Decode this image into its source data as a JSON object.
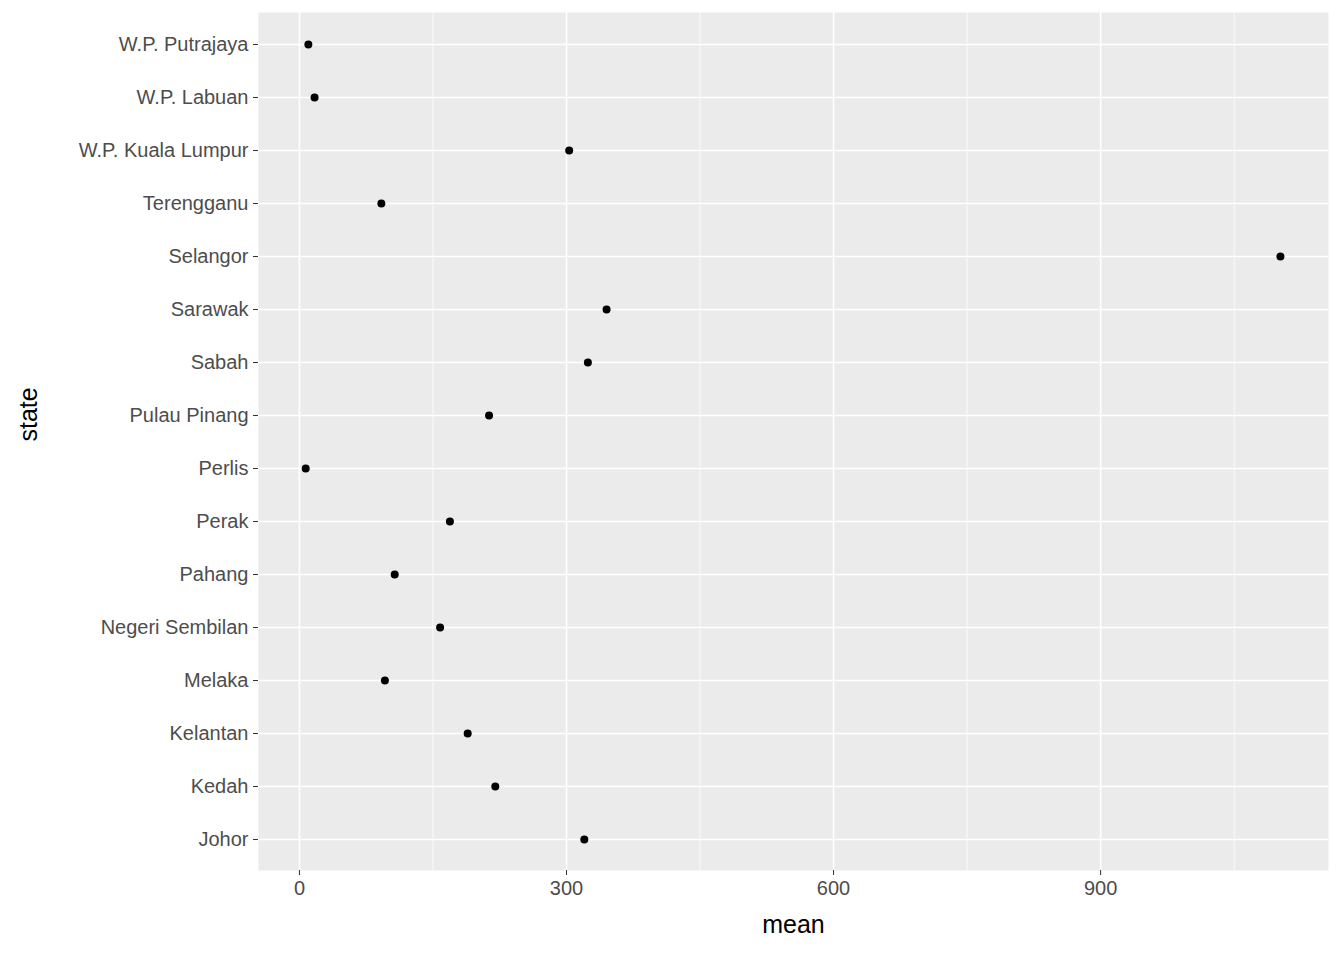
{
  "chart_data": {
    "type": "scatter",
    "x_label": "mean",
    "y_label": "state",
    "categories": [
      "W.P. Putrajaya",
      "W.P. Labuan",
      "W.P. Kuala Lumpur",
      "Terengganu",
      "Selangor",
      "Sarawak",
      "Sabah",
      "Pulau Pinang",
      "Perlis",
      "Perak",
      "Pahang",
      "Negeri Sembilan",
      "Melaka",
      "Kelantan",
      "Kedah",
      "Johor"
    ],
    "values": [
      10,
      17,
      303,
      92,
      1102,
      345,
      324,
      213,
      7,
      169,
      107,
      158,
      96,
      189,
      220,
      320
    ],
    "color": "#000000",
    "marker": "circle",
    "xlim": [
      -46,
      1156
    ],
    "xticks": [
      0,
      300,
      600,
      900
    ],
    "grid": true
  }
}
